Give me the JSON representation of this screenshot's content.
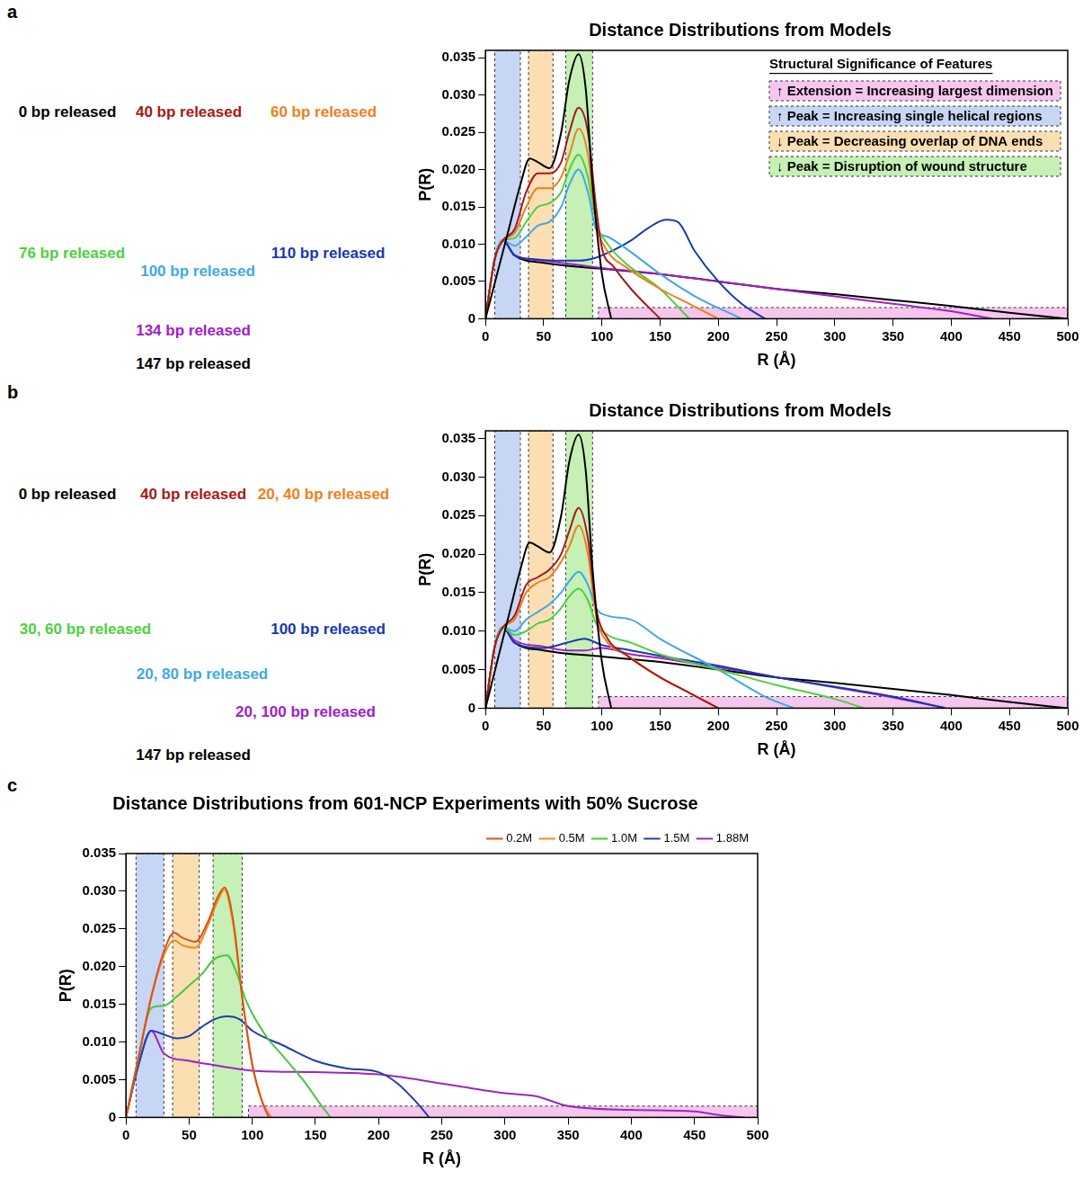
{
  "chart_data": [
    {
      "panel": "a",
      "type": "line",
      "title": "Distance Distributions from Models",
      "x_label": "R (Å)",
      "y_label": "P(R)",
      "xlim": [
        0,
        500
      ],
      "xticks": [
        0,
        50,
        100,
        150,
        200,
        250,
        300,
        350,
        400,
        450,
        500
      ],
      "ylim": [
        0,
        0.036
      ],
      "yticks": [
        0,
        0.005,
        {
          "value": 0.01,
          "label": "0.010"
        },
        0.015,
        {
          "value": 0.02,
          "label": "0.020"
        },
        0.025,
        {
          "value": 0.03,
          "label": "0.030"
        },
        0.035
      ],
      "grid": false,
      "regions_title": "Structural Significance of Features",
      "regions": [
        {
          "x": [
            97,
            500
          ],
          "y": [
            0,
            0.0015
          ],
          "color": "#f7c6ee",
          "label": "↑ Extension = Increasing largest dimension"
        },
        {
          "x": [
            8,
            30
          ],
          "y": [
            0,
            0.036
          ],
          "color": "#c8d6f6",
          "label": "↑ Peak = Increasing single helical regions"
        },
        {
          "x": [
            37,
            58
          ],
          "y": [
            0,
            0.036
          ],
          "color": "#fbdfb3",
          "label": "↓ Peak = Decreasing overlap of DNA ends"
        },
        {
          "x": [
            69,
            92
          ],
          "y": [
            0,
            0.036
          ],
          "color": "#c6f0b6",
          "label": "↓ Peak = Disruption of wound structure"
        }
      ],
      "series": [
        {
          "name": "0 bp released",
          "color": "#000000",
          "x": [
            0,
            10,
            20,
            30,
            38,
            45,
            55,
            65,
            72,
            80,
            86,
            92,
            100,
            108
          ],
          "values": [
            0,
            0.006,
            0.012,
            0.018,
            0.0215,
            0.021,
            0.0202,
            0.025,
            0.032,
            0.0355,
            0.031,
            0.018,
            0.006,
            0
          ]
        },
        {
          "name": "40 bp released",
          "color": "#a81818",
          "x": [
            0,
            8,
            15,
            25,
            35,
            45,
            55,
            65,
            72,
            80,
            88,
            95,
            100,
            110,
            125,
            150
          ],
          "values": [
            0,
            0.008,
            0.0105,
            0.012,
            0.017,
            0.0195,
            0.0195,
            0.021,
            0.025,
            0.0283,
            0.025,
            0.015,
            0.0095,
            0.007,
            0.004,
            0
          ]
        },
        {
          "name": "60 bp released",
          "color": "#f07f1a",
          "x": [
            0,
            8,
            15,
            25,
            35,
            45,
            55,
            65,
            72,
            80,
            88,
            95,
            105,
            120,
            150,
            175,
            200
          ],
          "values": [
            0,
            0.008,
            0.0105,
            0.0115,
            0.015,
            0.0175,
            0.0175,
            0.019,
            0.022,
            0.0255,
            0.022,
            0.013,
            0.009,
            0.007,
            0.004,
            0.002,
            0
          ]
        },
        {
          "name": "76 bp released",
          "color": "#4cd13b",
          "x": [
            0,
            8,
            15,
            25,
            35,
            45,
            55,
            65,
            72,
            80,
            88,
            95,
            105,
            120,
            150,
            175
          ],
          "values": [
            0,
            0.008,
            0.0105,
            0.0108,
            0.013,
            0.015,
            0.0155,
            0.017,
            0.02,
            0.022,
            0.019,
            0.013,
            0.01,
            0.0075,
            0.004,
            0
          ]
        },
        {
          "name": "100 bp released",
          "color": "#3fa9e6",
          "x": [
            0,
            8,
            15,
            25,
            35,
            45,
            55,
            65,
            72,
            80,
            88,
            95,
            105,
            120,
            150,
            180,
            220
          ],
          "values": [
            0,
            0.008,
            0.0105,
            0.0098,
            0.011,
            0.0125,
            0.013,
            0.015,
            0.018,
            0.02,
            0.017,
            0.012,
            0.011,
            0.0095,
            0.006,
            0.003,
            0
          ]
        },
        {
          "name": "110 bp released",
          "color": "#1638b4",
          "x": [
            0,
            8,
            15,
            25,
            40,
            60,
            80,
            95,
            110,
            125,
            140,
            155,
            165,
            180,
            200,
            220,
            240
          ],
          "values": [
            0,
            0.008,
            0.0105,
            0.0085,
            0.008,
            0.0078,
            0.0078,
            0.0082,
            0.0092,
            0.0105,
            0.0122,
            0.0133,
            0.013,
            0.009,
            0.005,
            0.002,
            0
          ]
        },
        {
          "name": "134 bp released",
          "color": "#a020c8",
          "x": [
            0,
            8,
            15,
            25,
            50,
            100,
            150,
            200,
            250,
            300,
            350,
            400,
            435
          ],
          "values": [
            0,
            0.008,
            0.0105,
            0.0085,
            0.0078,
            0.0068,
            0.006,
            0.005,
            0.004,
            0.003,
            0.002,
            0.001,
            0
          ]
        },
        {
          "name": "147 bp released",
          "color": "#000000",
          "x": [
            0,
            8,
            15,
            25,
            50,
            100,
            150,
            200,
            250,
            300,
            350,
            400,
            450,
            500
          ],
          "values": [
            0,
            0.008,
            0.0105,
            0.0085,
            0.0075,
            0.0067,
            0.006,
            0.005,
            0.004,
            0.0033,
            0.0025,
            0.0017,
            0.0008,
            0
          ]
        }
      ]
    },
    {
      "panel": "b",
      "type": "line",
      "title": "Distance Distributions from Models",
      "x_label": "R (Å)",
      "y_label": "P(R)",
      "xlim": [
        0,
        500
      ],
      "xticks": [
        0,
        50,
        100,
        150,
        200,
        250,
        300,
        350,
        400,
        450,
        500
      ],
      "ylim": [
        0,
        0.036
      ],
      "yticks": [
        0,
        0.005,
        {
          "value": 0.01,
          "label": "0.010"
        },
        0.015,
        {
          "value": 0.02,
          "label": "0.020"
        },
        0.025,
        {
          "value": 0.03,
          "label": "0.030"
        },
        0.035
      ],
      "grid": false,
      "regions": [
        {
          "x": [
            97,
            500
          ],
          "y": [
            0,
            0.0015
          ],
          "color": "#f7c6ee"
        },
        {
          "x": [
            8,
            30
          ],
          "y": [
            0,
            0.036
          ],
          "color": "#c8d6f6"
        },
        {
          "x": [
            37,
            58
          ],
          "y": [
            0,
            0.036
          ],
          "color": "#fbdfb3"
        },
        {
          "x": [
            69,
            92
          ],
          "y": [
            0,
            0.036
          ],
          "color": "#c6f0b6"
        }
      ],
      "series": [
        {
          "name": "0 bp released",
          "color": "#000000",
          "x": [
            0,
            10,
            20,
            30,
            38,
            45,
            55,
            65,
            72,
            80,
            86,
            92,
            100,
            108
          ],
          "values": [
            0,
            0.006,
            0.012,
            0.018,
            0.0215,
            0.021,
            0.0202,
            0.025,
            0.032,
            0.0355,
            0.031,
            0.018,
            0.006,
            0
          ]
        },
        {
          "name": "40 bp released",
          "color": "#a81818",
          "x": [
            0,
            8,
            15,
            25,
            35,
            45,
            55,
            65,
            72,
            80,
            88,
            95,
            105,
            120,
            150,
            175,
            200
          ],
          "values": [
            0,
            0.008,
            0.0105,
            0.012,
            0.016,
            0.017,
            0.018,
            0.02,
            0.023,
            0.026,
            0.022,
            0.013,
            0.009,
            0.007,
            0.004,
            0.002,
            0
          ]
        },
        {
          "name": "20, 40 bp released",
          "color": "#f07f1a",
          "x": [
            0,
            8,
            15,
            25,
            35,
            45,
            55,
            65,
            72,
            80,
            88,
            95,
            105,
            120,
            150,
            175,
            200
          ],
          "values": [
            0,
            0.008,
            0.0105,
            0.0115,
            0.015,
            0.0163,
            0.017,
            0.019,
            0.021,
            0.0237,
            0.02,
            0.012,
            0.0085,
            0.007,
            0.004,
            0.002,
            0
          ]
        },
        {
          "name": "30, 60 bp released",
          "color": "#4cd13b",
          "x": [
            0,
            8,
            15,
            25,
            35,
            45,
            55,
            65,
            72,
            80,
            88,
            95,
            105,
            125,
            150,
            200,
            250,
            300,
            325
          ],
          "values": [
            0,
            0.008,
            0.0105,
            0.0095,
            0.01,
            0.011,
            0.0115,
            0.013,
            0.0145,
            0.0155,
            0.014,
            0.011,
            0.0095,
            0.0085,
            0.007,
            0.005,
            0.003,
            0.0012,
            0
          ]
        },
        {
          "name": "20, 80 bp released",
          "color": "#3fa9e6",
          "x": [
            0,
            8,
            15,
            25,
            35,
            45,
            55,
            65,
            72,
            80,
            88,
            95,
            105,
            125,
            150,
            200,
            240,
            265
          ],
          "values": [
            0,
            0.008,
            0.0105,
            0.01,
            0.0115,
            0.0125,
            0.0135,
            0.015,
            0.0165,
            0.0177,
            0.016,
            0.013,
            0.012,
            0.0115,
            0.009,
            0.005,
            0.0015,
            0
          ]
        },
        {
          "name": "100 bp released",
          "color": "#1638b4",
          "x": [
            0,
            8,
            15,
            25,
            50,
            70,
            85,
            100,
            125,
            150,
            200,
            250,
            300,
            350,
            395
          ],
          "values": [
            0,
            0.008,
            0.0105,
            0.0085,
            0.0078,
            0.0085,
            0.009,
            0.0082,
            0.0075,
            0.0068,
            0.0055,
            0.004,
            0.0028,
            0.0015,
            0
          ]
        },
        {
          "name": "20, 100 bp released",
          "color": "#a020c8",
          "x": [
            0,
            8,
            15,
            25,
            50,
            70,
            85,
            100,
            125,
            150,
            200,
            250,
            300,
            350,
            395
          ],
          "values": [
            0,
            0.008,
            0.0105,
            0.0088,
            0.008,
            0.0075,
            0.0075,
            0.0078,
            0.007,
            0.0065,
            0.0053,
            0.004,
            0.0027,
            0.0014,
            0
          ]
        },
        {
          "name": "147 bp released",
          "color": "#000000",
          "x": [
            0,
            8,
            15,
            25,
            50,
            100,
            150,
            200,
            250,
            300,
            350,
            400,
            450,
            500
          ],
          "values": [
            0,
            0.008,
            0.0105,
            0.0085,
            0.0075,
            0.0067,
            0.006,
            0.005,
            0.004,
            0.0033,
            0.0025,
            0.0017,
            0.0008,
            0
          ]
        }
      ]
    },
    {
      "panel": "c",
      "type": "line",
      "title": "Distance Distributions from 601-NCP Experiments with 50% Sucrose",
      "x_label": "R (Å)",
      "y_label": "P(R)",
      "xlim": [
        0,
        500
      ],
      "xticks": [
        0,
        50,
        100,
        150,
        200,
        250,
        300,
        350,
        400,
        450,
        500
      ],
      "ylim": [
        0,
        0.035
      ],
      "yticks": [
        0,
        0.005,
        {
          "value": 0.01,
          "label": "0.010"
        },
        0.015,
        {
          "value": 0.02,
          "label": "0.020"
        },
        0.025,
        {
          "value": 0.03,
          "label": "0.030"
        },
        0.035
      ],
      "grid": false,
      "legend": "top right",
      "regions": [
        {
          "x": [
            97,
            500
          ],
          "y": [
            0,
            0.0015
          ],
          "color": "#f7c6ee"
        },
        {
          "x": [
            8,
            30
          ],
          "y": [
            0,
            0.035
          ],
          "color": "#c8d6f6"
        },
        {
          "x": [
            37,
            58
          ],
          "y": [
            0,
            0.035
          ],
          "color": "#fbdfb3"
        },
        {
          "x": [
            69,
            92
          ],
          "y": [
            0,
            0.035
          ],
          "color": "#c6f0b6"
        }
      ],
      "series": [
        {
          "name": "0.2M",
          "color": "#d9541a",
          "x": [
            0,
            10,
            20,
            30,
            38,
            45,
            55,
            65,
            72,
            78,
            85,
            92,
            100,
            108,
            113
          ],
          "values": [
            0,
            0.008,
            0.016,
            0.022,
            0.0245,
            0.0238,
            0.0233,
            0.026,
            0.029,
            0.0305,
            0.026,
            0.016,
            0.007,
            0.002,
            0
          ]
        },
        {
          "name": "0.5M",
          "color": "#f28a1c",
          "x": [
            0,
            10,
            20,
            30,
            38,
            45,
            55,
            65,
            72,
            78,
            85,
            92,
            100,
            108,
            115
          ],
          "values": [
            0,
            0.008,
            0.0158,
            0.0215,
            0.0235,
            0.0228,
            0.0225,
            0.0255,
            0.0285,
            0.0302,
            0.0255,
            0.016,
            0.007,
            0.002,
            0
          ]
        },
        {
          "name": "1.0M",
          "color": "#46c83a",
          "x": [
            0,
            10,
            20,
            30,
            40,
            50,
            60,
            70,
            80,
            88,
            95,
            110,
            125,
            140,
            155,
            162
          ],
          "values": [
            0,
            0.008,
            0.0145,
            0.0148,
            0.016,
            0.0175,
            0.019,
            0.021,
            0.0215,
            0.019,
            0.0155,
            0.011,
            0.008,
            0.005,
            0.0015,
            0
          ]
        },
        {
          "name": "1.5M",
          "color": "#1f3fae",
          "x": [
            0,
            10,
            20,
            30,
            40,
            50,
            60,
            70,
            80,
            90,
            100,
            125,
            150,
            175,
            200,
            215,
            230,
            240
          ],
          "values": [
            0,
            0.007,
            0.0115,
            0.011,
            0.0105,
            0.0108,
            0.012,
            0.013,
            0.0134,
            0.013,
            0.0115,
            0.0095,
            0.0075,
            0.0065,
            0.006,
            0.0045,
            0.002,
            0
          ]
        },
        {
          "name": "1.88M",
          "color": "#9b26c6",
          "x": [
            0,
            10,
            20,
            30,
            50,
            75,
            100,
            150,
            200,
            250,
            300,
            325,
            350,
            400,
            450,
            470,
            490
          ],
          "values": [
            0,
            0.007,
            0.0115,
            0.0085,
            0.0075,
            0.0068,
            0.0062,
            0.006,
            0.0057,
            0.0045,
            0.0032,
            0.0028,
            0.0015,
            0.001,
            0.0008,
            0.0003,
            0
          ]
        }
      ]
    }
  ]
}
